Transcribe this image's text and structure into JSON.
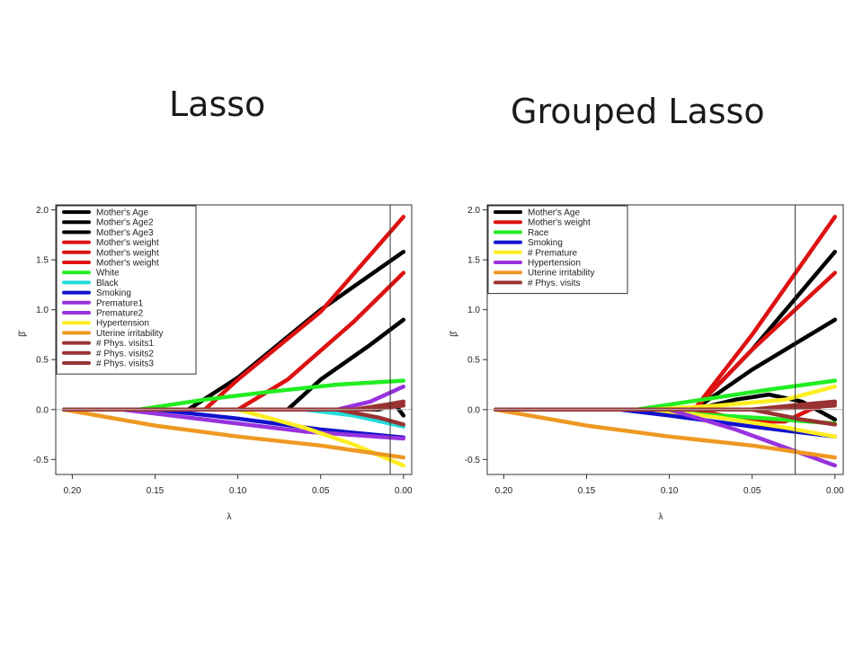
{
  "slide": {
    "left_title": "Lasso",
    "right_title": "Grouped Lasso"
  },
  "chart_data": [
    {
      "type": "line",
      "title": "Lasso",
      "xlabel": "λ",
      "ylabel": "β̂",
      "xlim": [
        0.21,
        -0.005
      ],
      "ylim": [
        -0.65,
        2.05
      ],
      "xticks": [
        "0.20",
        "0.15",
        "0.10",
        "0.05",
        "0.00"
      ],
      "xtick_values": [
        0.2,
        0.15,
        0.1,
        0.05,
        0.0
      ],
      "yticks": [
        "-0.5",
        "0.0",
        "0.5",
        "1.0",
        "1.5",
        "2.0"
      ],
      "ytick_values": [
        -0.5,
        0,
        0.5,
        1.0,
        1.5,
        2.0
      ],
      "vline": 0.008,
      "grid": false,
      "legend_position": "top-left",
      "series": [
        {
          "name": "Mother's Age",
          "color": "#000000",
          "points": [
            [
              0.205,
              0
            ],
            [
              0.13,
              0
            ],
            [
              0.1,
              0.32
            ],
            [
              0.05,
              1.0
            ],
            [
              0,
              1.58
            ]
          ]
        },
        {
          "name": "Mother's Age2",
          "color": "#000000",
          "points": [
            [
              0.205,
              0
            ],
            [
              0.07,
              0
            ],
            [
              0.05,
              0.3
            ],
            [
              0.02,
              0.65
            ],
            [
              0,
              0.9
            ]
          ]
        },
        {
          "name": "Mother's Age3",
          "color": "#000000",
          "points": [
            [
              0.205,
              0
            ],
            [
              0.015,
              0
            ],
            [
              0.005,
              0.05
            ],
            [
              0,
              -0.06
            ]
          ]
        },
        {
          "name": "Mother's weight",
          "color": "#dd1111",
          "points": [
            [
              0.205,
              0
            ],
            [
              0.12,
              0
            ],
            [
              0.1,
              0.3
            ],
            [
              0.05,
              0.98
            ],
            [
              0,
              1.93
            ]
          ]
        },
        {
          "name": "Mother's weight",
          "color": "#dd1111",
          "points": [
            [
              0.205,
              0
            ],
            [
              0.1,
              0
            ],
            [
              0.07,
              0.3
            ],
            [
              0.03,
              0.88
            ],
            [
              0,
              1.37
            ]
          ]
        },
        {
          "name": "Mother's weight",
          "color": "#dd1111",
          "points": [
            [
              0.205,
              0
            ],
            [
              0.02,
              0
            ],
            [
              0.01,
              0.04
            ],
            [
              0,
              0.07
            ]
          ]
        },
        {
          "name": "White",
          "color": "#22ee22",
          "points": [
            [
              0.205,
              0
            ],
            [
              0.16,
              0
            ],
            [
              0.12,
              0.1
            ],
            [
              0.08,
              0.18
            ],
            [
              0.04,
              0.25
            ],
            [
              0,
              0.29
            ]
          ]
        },
        {
          "name": "Black",
          "color": "#22dddd",
          "points": [
            [
              0.205,
              0
            ],
            [
              0.06,
              0
            ],
            [
              0.03,
              -0.06
            ],
            [
              0,
              -0.17
            ]
          ]
        },
        {
          "name": "Smoking",
          "color": "#1111cc",
          "points": [
            [
              0.205,
              0
            ],
            [
              0.15,
              0
            ],
            [
              0.1,
              -0.09
            ],
            [
              0.05,
              -0.2
            ],
            [
              0,
              -0.28
            ]
          ]
        },
        {
          "name": "Premature1",
          "color": "#9933dd",
          "points": [
            [
              0.205,
              0
            ],
            [
              0.04,
              0
            ],
            [
              0.02,
              0.08
            ],
            [
              0,
              0.23
            ]
          ]
        },
        {
          "name": "Premature2",
          "color": "#9933dd",
          "points": [
            [
              0.205,
              0
            ],
            [
              0.17,
              0
            ],
            [
              0.12,
              -0.1
            ],
            [
              0.06,
              -0.22
            ],
            [
              0,
              -0.29
            ]
          ]
        },
        {
          "name": "Hypertension",
          "color": "#ffee22",
          "points": [
            [
              0.205,
              0
            ],
            [
              0.1,
              0
            ],
            [
              0.06,
              -0.18
            ],
            [
              0.03,
              -0.35
            ],
            [
              0,
              -0.56
            ]
          ]
        },
        {
          "name": "Uterine irritability",
          "color": "#ee9922",
          "points": [
            [
              0.205,
              0
            ],
            [
              0.15,
              -0.16
            ],
            [
              0.1,
              -0.27
            ],
            [
              0.05,
              -0.36
            ],
            [
              0,
              -0.48
            ]
          ]
        },
        {
          "name": "# Phys. visits1",
          "color": "#993333",
          "points": [
            [
              0.205,
              0
            ],
            [
              0.03,
              0
            ],
            [
              0.01,
              0.05
            ],
            [
              0,
              0.08
            ]
          ]
        },
        {
          "name": "# Phys. visits2",
          "color": "#993333",
          "points": [
            [
              0.205,
              0
            ],
            [
              0.04,
              0
            ],
            [
              0.015,
              -0.08
            ],
            [
              0,
              -0.15
            ]
          ]
        },
        {
          "name": "# Phys. visits3",
          "color": "#993333",
          "points": [
            [
              0.205,
              0
            ],
            [
              0.02,
              0
            ],
            [
              0,
              0.04
            ]
          ]
        }
      ]
    },
    {
      "type": "line",
      "title": "Grouped Lasso",
      "xlabel": "λ",
      "ylabel": "β̂",
      "xlim": [
        0.21,
        -0.005
      ],
      "ylim": [
        -0.65,
        2.05
      ],
      "xticks": [
        "0.20",
        "0.15",
        "0.10",
        "0.05",
        "0.00"
      ],
      "xtick_values": [
        0.2,
        0.15,
        0.1,
        0.05,
        0.0
      ],
      "yticks": [
        "-0.5",
        "0.0",
        "0.5",
        "1.0",
        "1.5",
        "2.0"
      ],
      "ytick_values": [
        -0.5,
        0,
        0.5,
        1.0,
        1.5,
        2.0
      ],
      "vline": 0.024,
      "grid": false,
      "legend_position": "top-left",
      "series": [
        {
          "name": "Mother's Age",
          "color": "#000000",
          "points": [
            [
              0.205,
              0
            ],
            [
              0.085,
              0
            ],
            [
              0.05,
              0.6
            ],
            [
              0,
              1.58
            ]
          ]
        },
        {
          "name": "Mother's Age",
          "color": "#000000",
          "points": [
            [
              0.205,
              0
            ],
            [
              0.085,
              0
            ],
            [
              0.05,
              0.4
            ],
            [
              0,
              0.9
            ]
          ]
        },
        {
          "name": "Mother's Age",
          "color": "#000000",
          "points": [
            [
              0.205,
              0
            ],
            [
              0.085,
              0
            ],
            [
              0.06,
              0.1
            ],
            [
              0.04,
              0.15
            ],
            [
              0.02,
              0.08
            ],
            [
              0,
              -0.1
            ]
          ]
        },
        {
          "name": "Mother's weight",
          "color": "#dd1111",
          "points": [
            [
              0.205,
              0
            ],
            [
              0.085,
              0
            ],
            [
              0.05,
              0.75
            ],
            [
              0,
              1.93
            ]
          ]
        },
        {
          "name": "Mother's weight",
          "color": "#dd1111",
          "points": [
            [
              0.205,
              0
            ],
            [
              0.085,
              0
            ],
            [
              0.05,
              0.6
            ],
            [
              0,
              1.37
            ]
          ]
        },
        {
          "name": "Mother's weight",
          "color": "#dd1111",
          "points": [
            [
              0.205,
              0
            ],
            [
              0.085,
              0
            ],
            [
              0.05,
              -0.12
            ],
            [
              0.03,
              -0.12
            ],
            [
              0.015,
              0
            ],
            [
              0,
              0.07
            ]
          ]
        },
        {
          "name": "Race",
          "color": "#22ee22",
          "points": [
            [
              0.205,
              0
            ],
            [
              0.12,
              0
            ],
            [
              0.08,
              0.1
            ],
            [
              0.04,
              0.2
            ],
            [
              0,
              0.29
            ]
          ]
        },
        {
          "name": "Race",
          "color": "#22ee22",
          "points": [
            [
              0.205,
              0
            ],
            [
              0.12,
              0
            ],
            [
              0.08,
              -0.05
            ],
            [
              0.04,
              -0.09
            ],
            [
              0,
              -0.14
            ]
          ]
        },
        {
          "name": "Smoking",
          "color": "#1111cc",
          "points": [
            [
              0.205,
              0
            ],
            [
              0.13,
              0
            ],
            [
              0.1,
              -0.06
            ],
            [
              0.05,
              -0.17
            ],
            [
              0,
              -0.27
            ]
          ]
        },
        {
          "name": "# Premature",
          "color": "#ffee22",
          "points": [
            [
              0.205,
              0
            ],
            [
              0.11,
              0
            ],
            [
              0.07,
              0.04
            ],
            [
              0.03,
              0.1
            ],
            [
              0,
              0.23
            ]
          ]
        },
        {
          "name": "# Premature",
          "color": "#ffee22",
          "points": [
            [
              0.205,
              0
            ],
            [
              0.11,
              0
            ],
            [
              0.07,
              -0.08
            ],
            [
              0.03,
              -0.18
            ],
            [
              0,
              -0.27
            ]
          ]
        },
        {
          "name": "Hypertension",
          "color": "#9933dd",
          "points": [
            [
              0.205,
              0
            ],
            [
              0.1,
              0
            ],
            [
              0.06,
              -0.2
            ],
            [
              0.03,
              -0.38
            ],
            [
              0,
              -0.56
            ]
          ]
        },
        {
          "name": "Uterine irritability",
          "color": "#ee9922",
          "points": [
            [
              0.205,
              0
            ],
            [
              0.15,
              -0.16
            ],
            [
              0.1,
              -0.27
            ],
            [
              0.05,
              -0.36
            ],
            [
              0,
              -0.48
            ]
          ]
        },
        {
          "name": "# Phys. visits",
          "color": "#993333",
          "points": [
            [
              0.205,
              0
            ],
            [
              0.05,
              0
            ],
            [
              0.02,
              0.05
            ],
            [
              0,
              0.08
            ]
          ]
        },
        {
          "name": "# Phys. visits",
          "color": "#993333",
          "points": [
            [
              0.205,
              0
            ],
            [
              0.05,
              0
            ],
            [
              0.02,
              -0.1
            ],
            [
              0,
              -0.15
            ]
          ]
        },
        {
          "name": "# Phys. visits",
          "color": "#993333",
          "points": [
            [
              0.205,
              0
            ],
            [
              0.05,
              0
            ],
            [
              0.02,
              0.02
            ],
            [
              0,
              0.04
            ]
          ]
        }
      ],
      "legend": [
        {
          "name": "Mother's Age",
          "color": "#000000"
        },
        {
          "name": "Mother's weight",
          "color": "#dd1111"
        },
        {
          "name": "Race",
          "color": "#22ee22"
        },
        {
          "name": "Smoking",
          "color": "#1111cc"
        },
        {
          "name": "# Premature",
          "color": "#ffee22"
        },
        {
          "name": "Hypertension",
          "color": "#9933dd"
        },
        {
          "name": "Uterine irritability",
          "color": "#ee9922"
        },
        {
          "name": "# Phys. visits",
          "color": "#993333"
        }
      ]
    }
  ]
}
